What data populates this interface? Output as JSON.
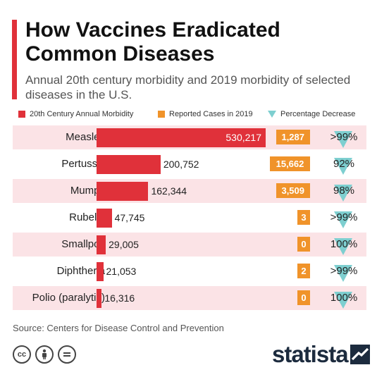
{
  "header": {
    "title": "How Vaccines Eradicated Common Diseases",
    "subtitle": "Annual 20th century morbidity and 2019 morbidity of selected diseases in the U.S."
  },
  "legend": {
    "morbidity": "20th Century Annual Morbidity",
    "reported": "Reported Cases in 2019",
    "decrease": "Percentage Decrease"
  },
  "colors": {
    "morbidity": "#e0313a",
    "reported": "#f0932a",
    "decrease": "#7ecfd0",
    "row_shade": "#fbe3e6"
  },
  "chart_data": {
    "type": "bar",
    "orientation": "horizontal",
    "categories": [
      "Measles",
      "Pertussis",
      "Mumps",
      "Rubella",
      "Smallpox",
      "Diphtheria",
      "Polio (paralytic)"
    ],
    "series": [
      {
        "name": "20th Century Annual Morbidity",
        "values": [
          530217,
          200752,
          162344,
          47745,
          29005,
          21053,
          16316
        ]
      },
      {
        "name": "Reported Cases in 2019",
        "values": [
          1287,
          15662,
          3509,
          3,
          0,
          2,
          0
        ]
      }
    ],
    "value_labels": [
      "530,217",
      "200,752",
      "162,344",
      "47,745",
      "29,005",
      "21,053",
      "16,316"
    ],
    "reported_labels": [
      "1,287",
      "15,662",
      "3,509",
      "3",
      "0",
      "2",
      "0"
    ],
    "percentage_decrease": [
      ">99%",
      "92%",
      "98%",
      ">99%",
      "100%",
      ">99%",
      "100%"
    ],
    "xlim": [
      0,
      530217
    ]
  },
  "footer": {
    "source": "Source: Centers for Disease Control and Prevention",
    "logo": "statista",
    "cc_icons": [
      "cc-icon",
      "attribution-icon",
      "no-derivatives-icon"
    ]
  }
}
